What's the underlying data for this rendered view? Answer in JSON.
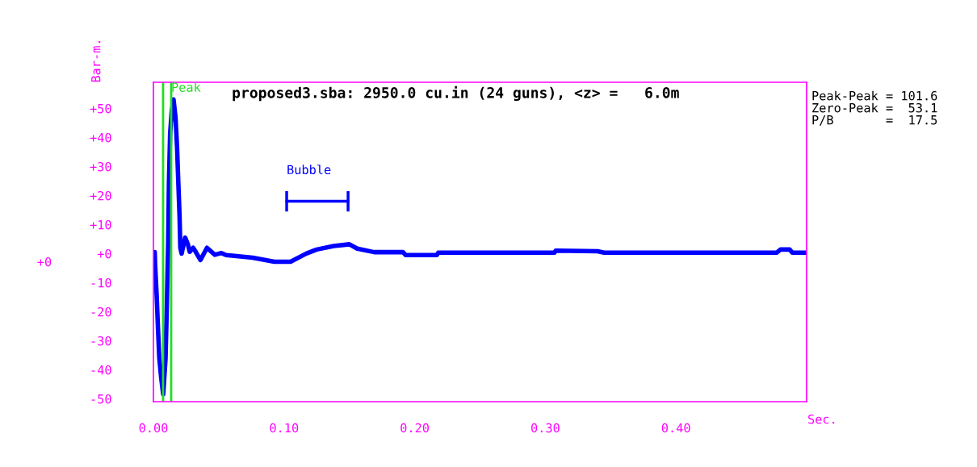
{
  "chart_data": {
    "type": "line",
    "title": "proposed3.sba: 2950.0 cu.in (24 guns), <z> =   6.0m",
    "xlabel": "Sec.",
    "ylabel": "Bar-m.",
    "x": [
      0.001,
      0.0013,
      0.0025,
      0.0035,
      0.0045,
      0.006,
      0.0075,
      0.0093,
      0.0103,
      0.0113,
      0.0119,
      0.0128,
      0.014,
      0.0154,
      0.0169,
      0.0181,
      0.0191,
      0.02,
      0.0206,
      0.0216,
      0.0243,
      0.0263,
      0.0278,
      0.0304,
      0.0325,
      0.036,
      0.041,
      0.047,
      0.052,
      0.0556,
      0.062,
      0.076,
      0.0926,
      0.105,
      0.117,
      0.125,
      0.138,
      0.15,
      0.156,
      0.169,
      0.191,
      0.193,
      0.217,
      0.218,
      0.307,
      0.308,
      0.34,
      0.345,
      0.477,
      0.48,
      0.487,
      0.489,
      0.5
    ],
    "series": [
      {
        "color": "#0000ff",
        "values": [
          0.5,
          -3.9,
          -14.6,
          -25.7,
          -36,
          -43,
          -48.5,
          -36,
          -17.4,
          3.6,
          24.9,
          41.4,
          48.9,
          53.1,
          47,
          36.7,
          24,
          13,
          2,
          0,
          5.5,
          3.3,
          0.6,
          2,
          0.5,
          -2.2,
          2,
          -0.4,
          0.2,
          -0.5,
          -0.8,
          -1.4,
          -2.8,
          -2.8,
          0,
          1.4,
          2.6,
          3.2,
          1.7,
          0.5,
          0.5,
          -0.5,
          -0.5,
          0.3,
          0.3,
          1,
          0.8,
          0.3,
          0.3,
          1.4,
          1.4,
          0.3,
          0.3
        ]
      },
      {
        "name": "Bubble",
        "x": [
          0.102,
          0.149
        ],
        "color": "#0000ff",
        "values": [
          18,
          18
        ],
        "errors": [
          3.5,
          3.5
        ]
      }
    ],
    "xlim": [
      0,
      0.5
    ],
    "xticks": [
      {
        "value": 0,
        "label": "0.00"
      },
      {
        "value": 0.1,
        "label": "0.10"
      },
      {
        "value": 0.2,
        "label": "0.20"
      },
      {
        "value": 0.3,
        "label": "0.30"
      },
      {
        "value": 0.4,
        "label": "0.40"
      }
    ],
    "ylim": [
      -51,
      59
    ],
    "yticks": [
      {
        "value": -50,
        "label": "-50"
      },
      {
        "value": -40,
        "label": "-40"
      },
      {
        "value": -30,
        "label": "-30"
      },
      {
        "value": -20,
        "label": "-20"
      },
      {
        "value": -10,
        "label": "-10"
      },
      {
        "value": 0,
        "label": "+0"
      },
      {
        "value": 10,
        "label": "+10"
      },
      {
        "value": 20,
        "label": "+20"
      },
      {
        "value": 30,
        "label": "+30"
      },
      {
        "value": 40,
        "label": "+40"
      },
      {
        "value": 50,
        "label": "+50"
      }
    ],
    "ref_lines": [
      {
        "axis": "x",
        "value": 0.0136,
        "label": "Peak",
        "color": "#22dd22"
      },
      {
        "axis": "x",
        "value": 0.0074,
        "label": null,
        "color": "#22dd22"
      }
    ],
    "annotations": [
      "Peak-Peak = 101.6",
      "Zero-Peak =  53.1",
      "P/B       =  17.5",
      "+0"
    ],
    "grid": false,
    "legend": false
  }
}
